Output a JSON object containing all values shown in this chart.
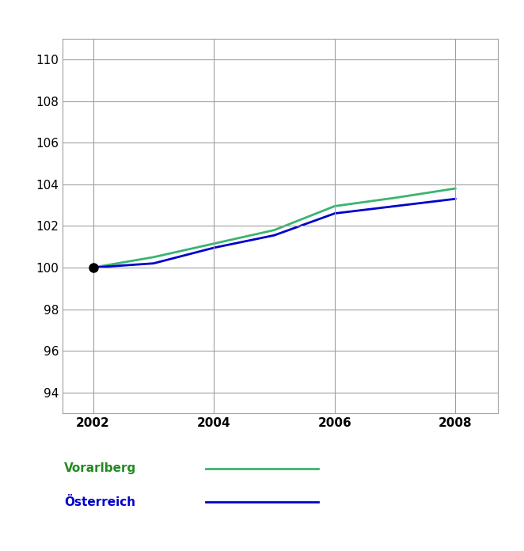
{
  "years": [
    2002,
    2003,
    2004,
    2005,
    2006,
    2007,
    2008
  ],
  "vorarlberg": [
    100.0,
    100.5,
    101.15,
    101.8,
    102.95,
    103.35,
    103.8
  ],
  "oesterreich": [
    100.0,
    100.2,
    100.95,
    101.55,
    102.6,
    102.95,
    103.3
  ],
  "vorarlberg_color": "#3cb371",
  "oesterreich_color": "#0000cd",
  "marker_color": "#000000",
  "line_width": 2.0,
  "ylim": [
    93,
    111
  ],
  "yticks": [
    94,
    96,
    98,
    100,
    102,
    104,
    106,
    108,
    110
  ],
  "xticks": [
    2002,
    2004,
    2006,
    2008
  ],
  "grid_color": "#a0a0a0",
  "background_color": "#ffffff",
  "legend_vorarlberg": "Vorarlberg",
  "legend_oesterreich": "Österreich",
  "legend_vorarlberg_color": "#228B22",
  "legend_oesterreich_color": "#0000cd",
  "font_size_ticks": 11,
  "font_size_legend": 11
}
